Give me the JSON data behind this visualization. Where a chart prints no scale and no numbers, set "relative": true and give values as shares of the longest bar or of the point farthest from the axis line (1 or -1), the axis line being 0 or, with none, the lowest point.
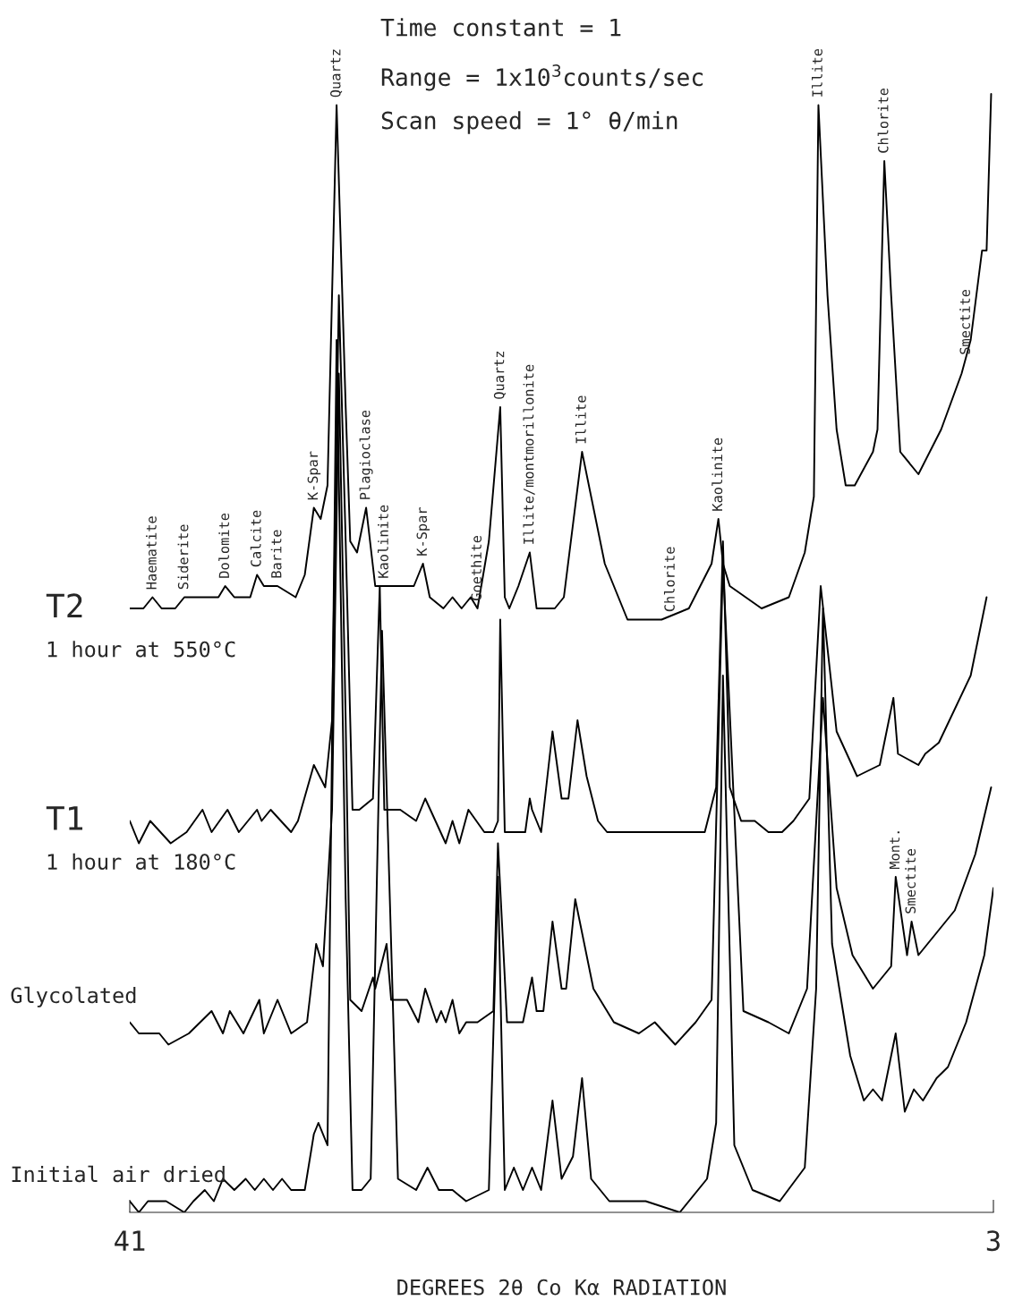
{
  "chart_data": {
    "type": "line",
    "relative": true,
    "xlabel": "DEGREES 2θ Co Kα RADIATION",
    "xlim": [
      41,
      3
    ],
    "xticks": [
      41,
      3
    ],
    "tick_labels": "x",
    "series": [
      {
        "name": "T2",
        "color": "#000000",
        "x": [
          41.0,
          40.4,
          40.0,
          39.6,
          39.0,
          38.6,
          38.4,
          37.7,
          37.1,
          36.8,
          36.4,
          35.7,
          35.4,
          35.1,
          34.5,
          33.7,
          33.3,
          32.9,
          32.6,
          32.3,
          31.9,
          31.5,
          31.3,
          31.0,
          30.6,
          30.2,
          29.8,
          29.0,
          28.5,
          28.1,
          27.8,
          27.2,
          26.8,
          26.4,
          26.0,
          25.7,
          25.2,
          24.7,
          24.5,
          24.3,
          23.9,
          23.4,
          23.1,
          22.3,
          21.9,
          21.1,
          20.7,
          20.1,
          19.9,
          19.1,
          17.6,
          16.4,
          15.4,
          15.1,
          14.9,
          14.6,
          13.2,
          12.0,
          11.3,
          10.9,
          10.7,
          10.3,
          9.9,
          9.5,
          9.1,
          8.3,
          8.1,
          7.8,
          7.5,
          7.1,
          6.3,
          5.3,
          4.4,
          4.0,
          3.5,
          3.3,
          3.1
        ],
        "values": [
          0.54,
          0.54,
          0.55,
          0.54,
          0.54,
          0.55,
          0.55,
          0.55,
          0.55,
          0.56,
          0.55,
          0.55,
          0.57,
          0.56,
          0.56,
          0.55,
          0.57,
          0.63,
          0.62,
          0.65,
          0.99,
          0.72,
          0.6,
          0.59,
          0.63,
          0.56,
          0.56,
          0.56,
          0.56,
          0.58,
          0.55,
          0.54,
          0.55,
          0.54,
          0.55,
          0.54,
          0.6,
          0.72,
          0.55,
          0.54,
          0.56,
          0.59,
          0.54,
          0.54,
          0.55,
          0.68,
          0.64,
          0.58,
          0.57,
          0.53,
          0.53,
          0.54,
          0.58,
          0.62,
          0.58,
          0.56,
          0.54,
          0.55,
          0.59,
          0.64,
          0.99,
          0.82,
          0.7,
          0.65,
          0.65,
          0.68,
          0.7,
          0.94,
          0.82,
          0.68,
          0.66,
          0.7,
          0.75,
          0.78,
          0.86,
          0.86,
          1.0
        ]
      },
      {
        "name": "T1",
        "color": "#000000",
        "x": [
          41.0,
          40.6,
          40.1,
          39.2,
          38.5,
          37.8,
          37.4,
          36.7,
          36.2,
          35.4,
          35.2,
          34.8,
          33.9,
          33.6,
          32.9,
          32.4,
          32.1,
          31.8,
          31.5,
          31.2,
          30.9,
          30.3,
          30.0,
          29.8,
          29.1,
          28.4,
          28.0,
          27.1,
          26.8,
          26.5,
          26.1,
          25.4,
          25.0,
          24.8,
          24.7,
          24.5,
          24.0,
          23.6,
          23.4,
          23.3,
          22.9,
          22.4,
          22.0,
          21.7,
          21.3,
          20.9,
          20.4,
          20.0,
          17.9,
          15.7,
          15.2,
          14.9,
          14.6,
          14.1,
          13.5,
          12.9,
          12.3,
          11.8,
          11.1,
          10.6,
          9.9,
          9.0,
          8.0,
          7.4,
          7.2,
          6.3,
          6.0,
          5.4,
          4.0,
          3.3
        ],
        "values": [
          0.35,
          0.33,
          0.35,
          0.33,
          0.34,
          0.36,
          0.34,
          0.36,
          0.34,
          0.36,
          0.35,
          0.36,
          0.34,
          0.35,
          0.4,
          0.38,
          0.44,
          0.82,
          0.6,
          0.36,
          0.36,
          0.37,
          0.56,
          0.36,
          0.36,
          0.35,
          0.37,
          0.33,
          0.35,
          0.33,
          0.36,
          0.34,
          0.34,
          0.35,
          0.53,
          0.34,
          0.34,
          0.34,
          0.37,
          0.36,
          0.34,
          0.43,
          0.37,
          0.37,
          0.44,
          0.39,
          0.35,
          0.34,
          0.34,
          0.34,
          0.38,
          0.6,
          0.38,
          0.35,
          0.35,
          0.34,
          0.34,
          0.35,
          0.37,
          0.56,
          0.43,
          0.39,
          0.4,
          0.46,
          0.41,
          0.4,
          0.41,
          0.42,
          0.48,
          0.55
        ]
      },
      {
        "name": "Glycolated",
        "color": "#000000",
        "x": [
          41.0,
          40.6,
          39.7,
          39.3,
          38.4,
          37.4,
          36.9,
          36.6,
          36.0,
          35.3,
          35.1,
          34.5,
          33.9,
          33.2,
          32.8,
          32.5,
          32.1,
          31.8,
          31.5,
          31.3,
          30.8,
          30.3,
          30.2,
          29.7,
          29.5,
          28.8,
          28.3,
          28.0,
          27.5,
          27.3,
          27.1,
          26.8,
          26.5,
          26.2,
          25.7,
          25.0,
          24.8,
          24.4,
          23.7,
          23.3,
          23.1,
          22.8,
          22.4,
          22.0,
          21.8,
          21.4,
          20.6,
          19.7,
          18.6,
          17.9,
          17.0,
          16.1,
          15.4,
          14.9,
          14.0,
          12.9,
          12.0,
          11.2,
          10.5,
          9.9,
          9.2,
          8.3,
          7.5,
          7.3,
          6.8,
          6.6,
          6.3,
          5.9,
          5.5,
          4.7,
          3.8,
          3.1
        ],
        "values": [
          0.17,
          0.16,
          0.16,
          0.15,
          0.16,
          0.18,
          0.16,
          0.18,
          0.16,
          0.19,
          0.16,
          0.19,
          0.16,
          0.17,
          0.24,
          0.22,
          0.36,
          0.75,
          0.44,
          0.19,
          0.18,
          0.21,
          0.2,
          0.24,
          0.19,
          0.19,
          0.17,
          0.2,
          0.17,
          0.18,
          0.17,
          0.19,
          0.16,
          0.17,
          0.17,
          0.18,
          0.33,
          0.17,
          0.17,
          0.21,
          0.18,
          0.18,
          0.26,
          0.2,
          0.2,
          0.28,
          0.2,
          0.17,
          0.16,
          0.17,
          0.15,
          0.17,
          0.19,
          0.58,
          0.18,
          0.17,
          0.16,
          0.2,
          0.46,
          0.29,
          0.23,
          0.2,
          0.22,
          0.3,
          0.23,
          0.26,
          0.23,
          0.24,
          0.25,
          0.27,
          0.32,
          0.38
        ]
      },
      {
        "name": "Initial air dried",
        "color": "#000000",
        "x": [
          41.0,
          40.6,
          40.2,
          39.8,
          39.4,
          38.6,
          38.2,
          37.7,
          37.3,
          36.9,
          36.4,
          35.9,
          35.5,
          35.1,
          34.7,
          34.3,
          33.9,
          33.3,
          32.9,
          32.7,
          32.3,
          31.9,
          31.5,
          31.2,
          30.8,
          30.4,
          29.9,
          29.2,
          28.4,
          27.9,
          27.4,
          26.8,
          26.2,
          25.2,
          24.8,
          24.5,
          24.1,
          23.7,
          23.3,
          22.9,
          22.4,
          22.0,
          21.5,
          21.1,
          20.7,
          19.9,
          18.3,
          16.8,
          15.6,
          15.2,
          14.9,
          14.4,
          13.6,
          12.4,
          11.3,
          10.8,
          10.5,
          10.1,
          9.3,
          8.7,
          8.3,
          7.9,
          7.3,
          6.9,
          6.5,
          6.1,
          5.5,
          5.0,
          4.2,
          3.4,
          3.0
        ],
        "values": [
          0.01,
          0.0,
          0.01,
          0.01,
          0.01,
          0.0,
          0.01,
          0.02,
          0.01,
          0.03,
          0.02,
          0.03,
          0.02,
          0.03,
          0.02,
          0.03,
          0.02,
          0.02,
          0.07,
          0.08,
          0.06,
          0.78,
          0.28,
          0.02,
          0.02,
          0.03,
          0.52,
          0.03,
          0.02,
          0.04,
          0.02,
          0.02,
          0.01,
          0.02,
          0.3,
          0.02,
          0.04,
          0.02,
          0.04,
          0.02,
          0.1,
          0.03,
          0.05,
          0.12,
          0.03,
          0.01,
          0.01,
          0.0,
          0.03,
          0.08,
          0.48,
          0.06,
          0.02,
          0.01,
          0.04,
          0.2,
          0.54,
          0.24,
          0.14,
          0.1,
          0.11,
          0.1,
          0.16,
          0.09,
          0.11,
          0.1,
          0.12,
          0.13,
          0.17,
          0.23,
          0.29
        ]
      }
    ],
    "annotations": [
      "Time constant = 1",
      "Range = 1x10$^{3}$counts/sec",
      "Scan speed = 1° θ/min",
      "1 hour at 550°C",
      "1 hour at 180°C",
      {
        "text": "Haematite",
        "x": 40.0,
        "y": 0.55
      },
      {
        "text": "Siderite",
        "x": 38.6,
        "y": 0.55
      },
      {
        "text": "Dolomite",
        "x": 36.8,
        "y": 0.56
      },
      {
        "text": "Calcite",
        "x": 35.4,
        "y": 0.57
      },
      {
        "text": "Barite",
        "x": 34.5,
        "y": 0.56
      },
      {
        "text": "K-Spar",
        "x": 32.9,
        "y": 0.63
      },
      {
        "text": "Quartz",
        "x": 31.9,
        "y": 0.99
      },
      {
        "text": "Plagioclase",
        "x": 30.6,
        "y": 0.63
      },
      {
        "text": "Kaolinite",
        "x": 29.8,
        "y": 0.56
      },
      {
        "text": "K-Spar",
        "x": 28.1,
        "y": 0.58
      },
      {
        "text": "Goethite",
        "x": 25.7,
        "y": 0.54
      },
      {
        "text": "Quartz",
        "x": 24.7,
        "y": 0.72
      },
      {
        "text": "Illite/montmorillonite",
        "x": 23.4,
        "y": 0.59
      },
      {
        "text": "Illite",
        "x": 21.1,
        "y": 0.68
      },
      {
        "text": "Chlorite",
        "x": 17.2,
        "y": 0.53
      },
      {
        "text": "Kaolinite",
        "x": 15.1,
        "y": 0.62
      },
      {
        "text": "Illite",
        "x": 10.7,
        "y": 0.99
      },
      {
        "text": "Chlorite",
        "x": 7.8,
        "y": 0.94
      },
      {
        "text": "Smectite",
        "x": 4.2,
        "y": 0.76
      },
      {
        "text": "Mont.",
        "x": 7.3,
        "y": 0.3
      },
      {
        "text": "Smectite",
        "x": 6.6,
        "y": 0.26
      }
    ]
  }
}
